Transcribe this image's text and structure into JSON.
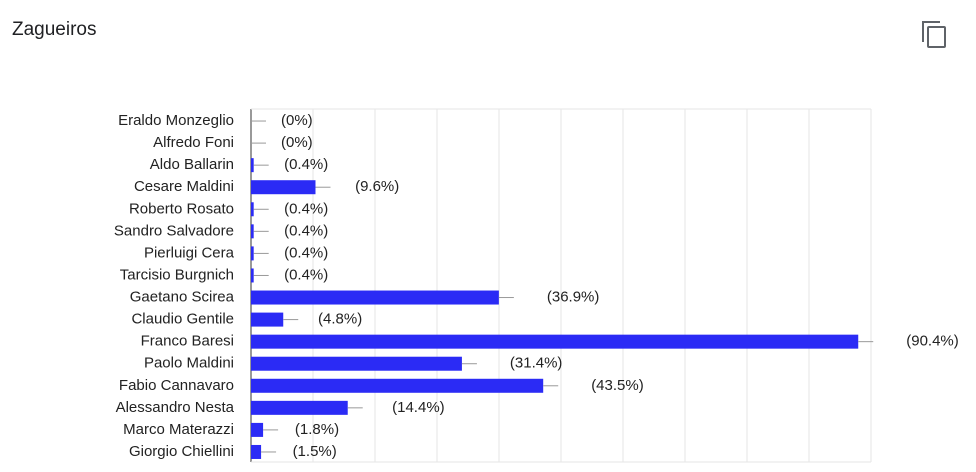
{
  "chart_data": {
    "type": "bar",
    "orientation": "horizontal",
    "title": "Zagueiros",
    "categories": [
      "Eraldo Monzeglio",
      "Alfredo Foni",
      "Aldo Ballarin",
      "Cesare Maldini",
      "Roberto Rosato",
      "Sandro Salvadore",
      "Pierluigi Cera",
      "Tarcisio Burgnich",
      "Gaetano Scirea",
      "Claudio Gentile",
      "Franco Baresi",
      "Paolo Maldini",
      "Fabio Cannavaro",
      "Alessandro Nesta",
      "Marco Materazzi",
      "Giorgio Chiellini"
    ],
    "values": [
      0,
      0,
      0.4,
      9.6,
      0.4,
      0.4,
      0.4,
      0.4,
      36.9,
      4.8,
      90.4,
      31.4,
      43.5,
      14.4,
      1.8,
      1.5
    ],
    "value_labels": [
      "(0%)",
      "(0%)",
      "(0.4%)",
      "(9.6%)",
      "(0.4%)",
      "(0.4%)",
      "(0.4%)",
      "(0.4%)",
      "(36.9%)",
      "(4.8%)",
      "(90.4%)",
      "(31.4%)",
      "(43.5%)",
      "(14.4%)",
      "(1.8%)",
      "(1.5%)"
    ],
    "color": "#2b2bf5",
    "xlim": [
      0,
      92.3
    ]
  }
}
